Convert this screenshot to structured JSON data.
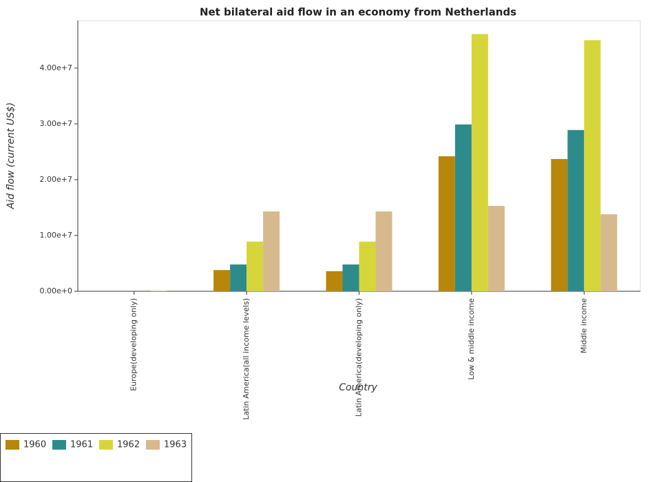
{
  "chart_data": {
    "type": "bar",
    "title": "Net bilateral aid flow in an economy from Netherlands",
    "x_label": "Country",
    "y_label": "Aid flow (current US$)",
    "categories": [
      "Europe(developing only)",
      "Latin America(all income levels)",
      "Latin America(developing only)",
      "Low & middle income",
      "Middle income"
    ],
    "series": [
      {
        "name": "1960",
        "color": "#b8860b",
        "values": [
          0,
          3800000,
          3600000,
          24200000,
          23700000
        ]
      },
      {
        "name": "1961",
        "color": "#2e8b8b",
        "values": [
          0,
          4800000,
          4800000,
          29900000,
          28900000
        ]
      },
      {
        "name": "1962",
        "color": "#d6d63a",
        "values": [
          0,
          8900000,
          8900000,
          46100000,
          45000000
        ]
      },
      {
        "name": "1963",
        "color": "#d7b98e",
        "values": [
          100000,
          14300000,
          14300000,
          15300000,
          13800000
        ]
      }
    ],
    "ylim": [
      0,
      48500000
    ],
    "yticks": [
      {
        "value": 0,
        "label": "0.00e+0"
      },
      {
        "value": 10000000,
        "label": "1.00e+7"
      },
      {
        "value": 20000000,
        "label": "2.00e+7"
      },
      {
        "value": 30000000,
        "label": "3.00e+7"
      },
      {
        "value": 40000000,
        "label": "4.00e+7"
      }
    ],
    "legend_position": "lower left"
  }
}
